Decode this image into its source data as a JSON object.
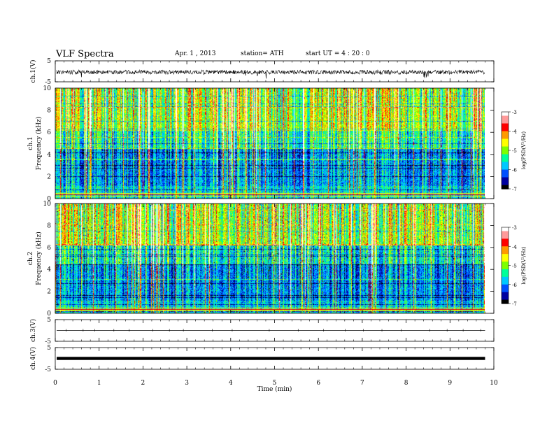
{
  "header": {
    "title": "VLF  Spectra",
    "date": "Apr. 1   , 2013",
    "station": "station= ATH",
    "start": "start  UT  =   4  : 20 : 0"
  },
  "chart_data": [
    {
      "type": "line",
      "panel": "ch1-waveform",
      "ylabel": "ch.1(V)",
      "y_ticks": [
        "5",
        "-5"
      ],
      "ylim": [
        -5,
        5
      ],
      "xlim": [
        0,
        10
      ],
      "baseline": -0.4,
      "note_level": "noisy trace, amplitude approx +/-0.8 V with spikes to about -2 V"
    },
    {
      "type": "heatmap",
      "panel": "ch1-spectrogram",
      "ylabel_top": "ch.1",
      "ylabel": "Frequency  (kHz)",
      "y_ticks": [
        "0",
        "2",
        "4",
        "6",
        "8",
        "10"
      ],
      "ylim": [
        0,
        10
      ],
      "xlim": [
        0,
        9.8
      ],
      "colorbar": {
        "label": "log(PSD(V²/Hz)",
        "ticks": [
          "-3",
          "-4",
          "-5",
          "-6",
          "-7"
        ],
        "range": [
          -7,
          -3
        ]
      }
    },
    {
      "type": "heatmap",
      "panel": "ch2-spectrogram",
      "ylabel_top": "ch.2",
      "ylabel": "Frequency  (kHz)",
      "y_ticks": [
        "0",
        "2",
        "4",
        "6",
        "8",
        "10"
      ],
      "ylim": [
        0,
        10
      ],
      "xlim": [
        0,
        9.8
      ],
      "colorbar": {
        "label": "log(PSD(V²/Hz)",
        "ticks": [
          "-3",
          "-4",
          "-5",
          "-6",
          "-7"
        ],
        "range": [
          -7,
          -3
        ]
      }
    },
    {
      "type": "line",
      "panel": "ch3-waveform",
      "ylabel": "ch.3(V)",
      "y_ticks": [
        "5",
        "-5"
      ],
      "ylim": [
        -5,
        5
      ],
      "xlim": [
        0,
        10
      ],
      "baseline": 0
    },
    {
      "type": "line",
      "panel": "ch4-waveform",
      "ylabel": "ch.4(V)",
      "y_ticks": [
        "5",
        "-5"
      ],
      "ylim": [
        -5,
        5
      ],
      "xlim": [
        0,
        10
      ],
      "baseline": 0
    }
  ],
  "x_axis": {
    "label": "Time  (min)",
    "ticks": [
      "0",
      "1",
      "2",
      "3",
      "4",
      "5",
      "6",
      "7",
      "8",
      "9",
      "10"
    ],
    "range": [
      0,
      10
    ],
    "data_end": 9.8
  },
  "colors": {
    "scale": [
      "#000000",
      "#0000a0",
      "#0050ff",
      "#00c8ff",
      "#00ff9a",
      "#7dff00",
      "#ffff00",
      "#ff9a00",
      "#ff0000",
      "#ff9a9a",
      "#ffffff"
    ]
  }
}
